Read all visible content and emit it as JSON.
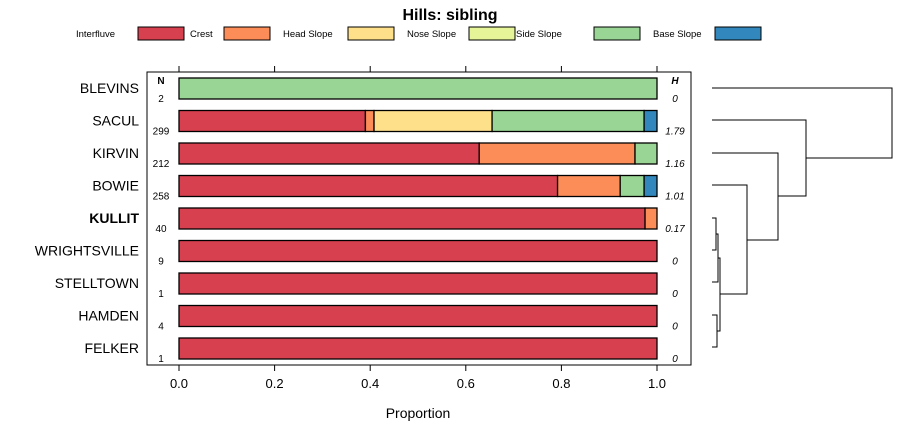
{
  "chart_data": {
    "type": "bar",
    "orientation": "horizontal-stacked",
    "title": "Hills: sibling",
    "xlabel": "Proportion",
    "xlim": [
      0,
      1
    ],
    "xticks": [
      "0.0",
      "0.2",
      "0.4",
      "0.6",
      "0.8",
      "1.0"
    ],
    "n_header": "N",
    "h_header": "H",
    "legend": [
      {
        "name": "Interfluve",
        "color": "#D7404F"
      },
      {
        "name": "Crest",
        "color": "#FC8D59"
      },
      {
        "name": "Head Slope",
        "color": "#FEE08B"
      },
      {
        "name": "Nose Slope",
        "color": "#E6F598"
      },
      {
        "name": "Side Slope",
        "color": "#99D594"
      },
      {
        "name": "Base Slope",
        "color": "#3288BD"
      }
    ],
    "categories": [
      "BLEVINS",
      "SACUL",
      "KIRVIN",
      "BOWIE",
      "KULLIT",
      "WRIGHTSVILLE",
      "STELLTOWN",
      "HAMDEN",
      "FELKER"
    ],
    "highlight": "KULLIT",
    "n": [
      "2",
      "299",
      "212",
      "258",
      "40",
      "9",
      "1",
      "4",
      "1"
    ],
    "h": [
      "0",
      "1.79",
      "1.16",
      "1.01",
      "0.17",
      "0",
      "0",
      "0",
      "0"
    ],
    "series": [
      {
        "name": "Interfluve",
        "values": [
          0,
          0.39,
          0.628,
          0.792,
          0.975,
          1,
          1,
          1,
          1
        ]
      },
      {
        "name": "Crest",
        "values": [
          0,
          0.018,
          0.326,
          0.131,
          0.025,
          0,
          0,
          0,
          0
        ]
      },
      {
        "name": "Head Slope",
        "values": [
          0,
          0.247,
          0,
          0,
          0,
          0,
          0,
          0,
          0
        ]
      },
      {
        "name": "Nose Slope",
        "values": [
          0,
          0,
          0,
          0,
          0,
          0,
          0,
          0,
          0
        ]
      },
      {
        "name": "Side Slope",
        "values": [
          1,
          0.318,
          0.046,
          0.05,
          0,
          0,
          0,
          0,
          0
        ]
      },
      {
        "name": "Base Slope",
        "values": [
          0,
          0.027,
          0,
          0.027,
          0,
          0,
          0,
          0,
          0
        ]
      }
    ]
  }
}
